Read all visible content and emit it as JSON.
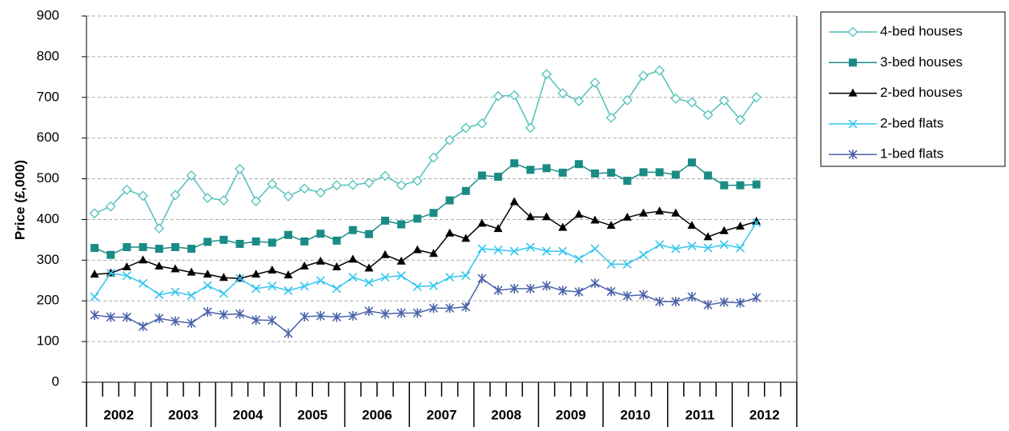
{
  "chart_data": {
    "type": "line",
    "y_label": "Price (£,000)",
    "categories": [
      null,
      null,
      null,
      null,
      null,
      null,
      null,
      null,
      null,
      null,
      null,
      null,
      null,
      null,
      null,
      null,
      null,
      null,
      null,
      null,
      null,
      null,
      null,
      null,
      null,
      null,
      null,
      null,
      null,
      null,
      null,
      null,
      null,
      null,
      null,
      null,
      null,
      null,
      null,
      null,
      null,
      null,
      null,
      null
    ],
    "x_groups": [
      "2002",
      "2003",
      "2004",
      "2005",
      "2006",
      "2007",
      "2008",
      "2009",
      "2010",
      "2011",
      "2012"
    ],
    "ylim": [
      0,
      900
    ],
    "yticks": [
      0,
      100,
      200,
      300,
      400,
      500,
      600,
      700,
      800,
      900
    ],
    "grid": true,
    "legend": "right",
    "series": [
      {
        "name": "4-bed houses",
        "color": "#4fc1b9",
        "marker": "diamond",
        "values": [
          415,
          432,
          473,
          458,
          378,
          460,
          508,
          453,
          447,
          524,
          445,
          487,
          457,
          476,
          466,
          484,
          485,
          490,
          507,
          484,
          495,
          552,
          595,
          625,
          636,
          703,
          705,
          625,
          757,
          710,
          691,
          736,
          650,
          693,
          753,
          766,
          697,
          688,
          657,
          692,
          645,
          700,
          null,
          null
        ]
      },
      {
        "name": "3-bed houses",
        "color": "#1b8b85",
        "marker": "square",
        "values": [
          330,
          313,
          332,
          332,
          328,
          332,
          328,
          345,
          350,
          340,
          346,
          343,
          362,
          346,
          365,
          348,
          374,
          364,
          397,
          388,
          402,
          416,
          447,
          470,
          508,
          505,
          538,
          522,
          526,
          515,
          536,
          513,
          515,
          495,
          516,
          516,
          510,
          540,
          508,
          484,
          484,
          486,
          null,
          null
        ]
      },
      {
        "name": "2-bed houses",
        "color": "#000000",
        "marker": "triangle",
        "values": [
          265,
          268,
          283,
          300,
          285,
          278,
          270,
          265,
          257,
          255,
          265,
          275,
          263,
          285,
          297,
          283,
          302,
          280,
          313,
          297,
          325,
          316,
          366,
          353,
          390,
          377,
          443,
          406,
          406,
          380,
          412,
          398,
          385,
          405,
          415,
          420,
          415,
          385,
          357,
          372,
          383,
          395,
          null,
          null
        ]
      },
      {
        "name": "2-bed flats",
        "color": "#33c6ee",
        "marker": "x",
        "values": [
          210,
          268,
          262,
          243,
          215,
          222,
          213,
          238,
          218,
          255,
          230,
          236,
          225,
          236,
          250,
          230,
          258,
          245,
          258,
          262,
          235,
          237,
          258,
          262,
          328,
          325,
          322,
          332,
          322,
          322,
          303,
          328,
          290,
          290,
          313,
          338,
          328,
          335,
          330,
          338,
          330,
          392,
          null,
          null
        ]
      },
      {
        "name": "1-bed flats",
        "color": "#4a62aa",
        "marker": "star",
        "values": [
          165,
          160,
          160,
          137,
          157,
          150,
          145,
          173,
          166,
          168,
          153,
          152,
          120,
          161,
          163,
          160,
          163,
          175,
          168,
          170,
          170,
          182,
          182,
          185,
          255,
          226,
          230,
          230,
          237,
          225,
          222,
          243,
          223,
          212,
          215,
          198,
          198,
          210,
          190,
          197,
          195,
          208,
          null,
          null
        ]
      }
    ]
  }
}
